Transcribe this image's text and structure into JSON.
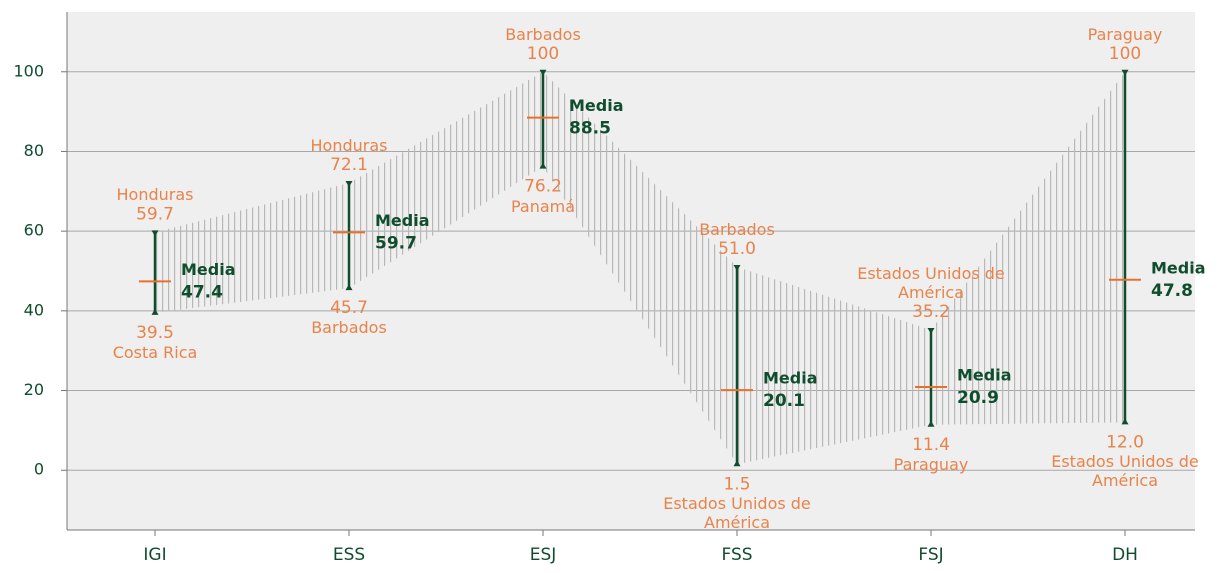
{
  "chart_data": {
    "type": "range",
    "categories": [
      "IGI",
      "ESS",
      "ESJ",
      "FSS",
      "FSJ",
      "DH"
    ],
    "series": [
      {
        "name": "max",
        "color": "#e8834a",
        "values": [
          59.7,
          72.1,
          100,
          51.0,
          35.2,
          100
        ],
        "value_labels": [
          "59.7",
          "72.1",
          "100",
          "51.0",
          "35.2",
          "100"
        ],
        "countries": [
          "Honduras",
          "Honduras",
          "Barbados",
          "Barbados",
          "Estados Unidos de América",
          "Paraguay"
        ]
      },
      {
        "name": "min",
        "color": "#e8834a",
        "values": [
          39.5,
          45.7,
          76.2,
          1.5,
          11.4,
          12.0
        ],
        "value_labels": [
          "39.5",
          "45.7",
          "76.2",
          "1.5",
          "11.4",
          "12.0"
        ],
        "countries": [
          "Costa Rica",
          "Barbados",
          "Panamá",
          "Estados Unidos de América",
          "Paraguay",
          "Estados Unidos de América"
        ]
      },
      {
        "name": "Media",
        "color": "#e8702a",
        "values": [
          47.4,
          59.7,
          88.5,
          20.1,
          20.9,
          47.8
        ]
      }
    ],
    "range_color": "#0f4d2e",
    "ylim": [
      -15,
      115
    ],
    "yticks": [
      0,
      20,
      40,
      60,
      80,
      100
    ],
    "grid": true
  }
}
